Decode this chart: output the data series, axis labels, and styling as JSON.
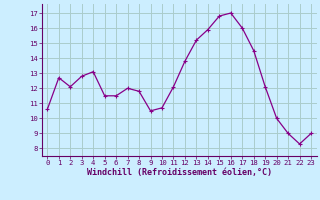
{
  "x": [
    0,
    1,
    2,
    3,
    4,
    5,
    6,
    7,
    8,
    9,
    10,
    11,
    12,
    13,
    14,
    15,
    16,
    17,
    18,
    19,
    20,
    21,
    22,
    23
  ],
  "y": [
    10.6,
    12.7,
    12.1,
    12.8,
    13.1,
    11.5,
    11.5,
    12.0,
    11.8,
    10.5,
    10.7,
    12.1,
    13.8,
    15.2,
    15.9,
    16.8,
    17.0,
    16.0,
    14.5,
    12.1,
    10.0,
    9.0,
    8.3,
    9.0
  ],
  "line_color": "#880088",
  "marker": "+",
  "marker_size": 3.5,
  "marker_lw": 0.8,
  "bg_color": "#cceeff",
  "grid_color": "#aacccc",
  "xlabel": "Windchill (Refroidissement éolien,°C)",
  "ylim": [
    7.5,
    17.6
  ],
  "xlim": [
    -0.5,
    23.5
  ],
  "yticks": [
    8,
    9,
    10,
    11,
    12,
    13,
    14,
    15,
    16,
    17
  ],
  "xticks": [
    0,
    1,
    2,
    3,
    4,
    5,
    6,
    7,
    8,
    9,
    10,
    11,
    12,
    13,
    14,
    15,
    16,
    17,
    18,
    19,
    20,
    21,
    22,
    23
  ],
  "tick_fontsize": 5.2,
  "label_fontsize": 6.0,
  "label_color": "#660066",
  "tick_color": "#660066",
  "axis_color": "#660066",
  "line_width": 0.9
}
